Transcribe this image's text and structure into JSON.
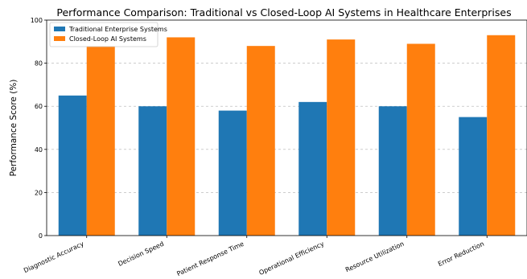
{
  "chart_data": {
    "type": "bar",
    "title": "Performance Comparison: Traditional vs Closed-Loop AI Systems in Healthcare Enterprises",
    "xlabel": "",
    "ylabel": "Performance Score (%)",
    "ylim": [
      0,
      100
    ],
    "yticks": [
      0,
      20,
      40,
      60,
      80,
      100
    ],
    "grid": true,
    "legend_position": "top-left",
    "categories": [
      "Diagnostic Accuracy",
      "Decision Speed",
      "Patient Response Time",
      "Operational Efficiency",
      "Resource Utilization",
      "Error Reduction"
    ],
    "series": [
      {
        "name": "Traditional Enterprise Systems",
        "color": "#1f77b4",
        "values": [
          65,
          60,
          58,
          62,
          60,
          55
        ]
      },
      {
        "name": "Closed-Loop AI Systems",
        "color": "#ff7f0e",
        "values": [
          88,
          92,
          88,
          91,
          89,
          93
        ]
      }
    ]
  }
}
